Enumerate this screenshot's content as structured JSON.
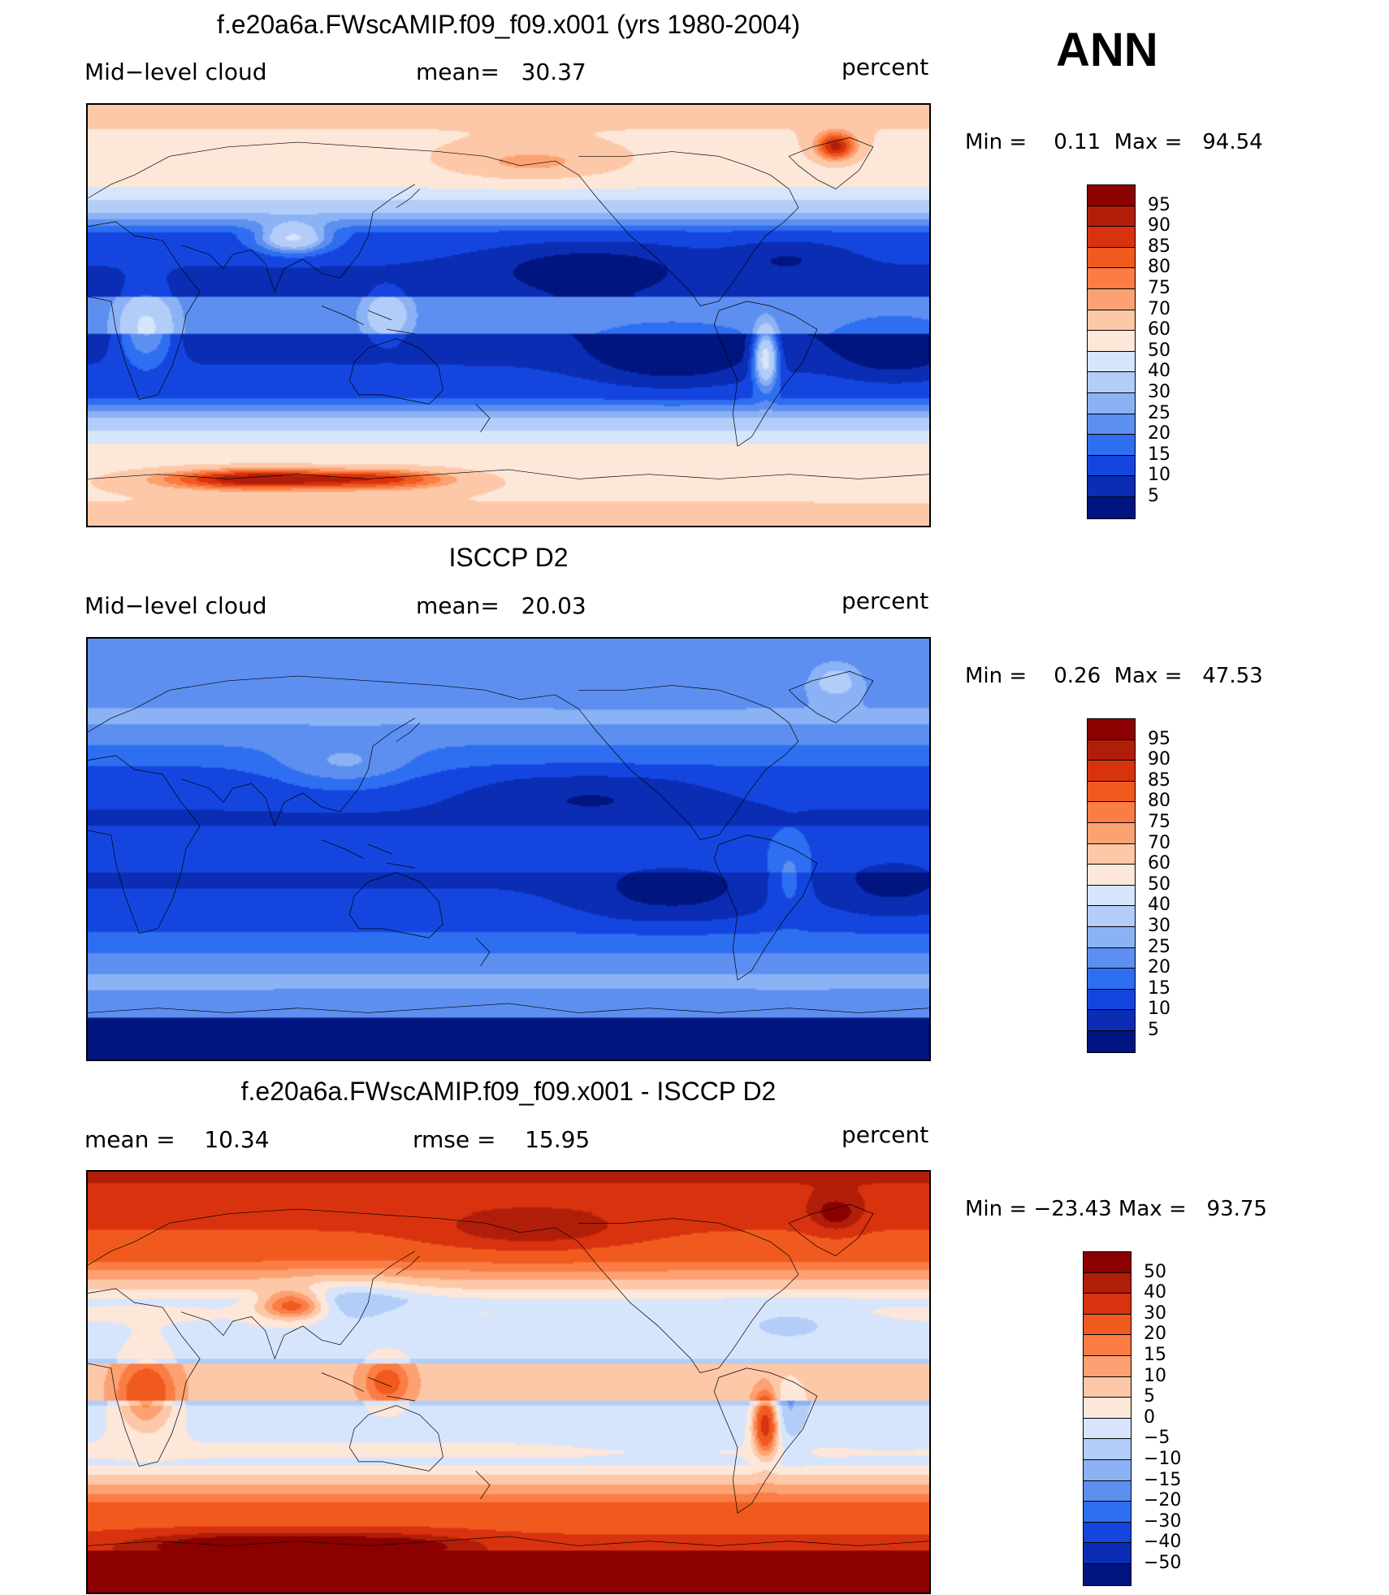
{
  "season": "ANN",
  "panels": [
    {
      "title": "f.e20a6a.FWscAMIP.f09_f09.x001 (yrs 1980-2004)",
      "left_label": "Mid−level cloud",
      "center_label": "mean=   30.37",
      "right_label": "percent",
      "minmax": "Min =    0.11  Max =   94.54",
      "colorbar_labels": [
        "95",
        "90",
        "85",
        "80",
        "75",
        "70",
        "60",
        "50",
        "40",
        "30",
        "25",
        "20",
        "15",
        "10",
        "5"
      ],
      "colorbar_colors": [
        "#8b0000",
        "#b01e0a",
        "#d8320f",
        "#f05a1e",
        "#fb7d45",
        "#fca272",
        "#fcc8a8",
        "#fde7d9",
        "#d6e5fb",
        "#b3cdf9",
        "#8bb2f5",
        "#5d8ff0",
        "#2e6ef0",
        "#1446df",
        "#0a2db4",
        "#001580"
      ],
      "field": "model"
    },
    {
      "title": "ISCCP D2",
      "left_label": "Mid−level cloud",
      "center_label": "mean=   20.03",
      "right_label": "percent",
      "minmax": "Min =    0.26  Max =   47.53",
      "colorbar_labels": [
        "95",
        "90",
        "85",
        "80",
        "75",
        "70",
        "60",
        "50",
        "40",
        "30",
        "25",
        "20",
        "15",
        "10",
        "5"
      ],
      "colorbar_colors": [
        "#8b0000",
        "#b01e0a",
        "#d8320f",
        "#f05a1e",
        "#fb7d45",
        "#fca272",
        "#fcc8a8",
        "#fde7d9",
        "#d6e5fb",
        "#b3cdf9",
        "#8bb2f5",
        "#5d8ff0",
        "#2e6ef0",
        "#1446df",
        "#0a2db4",
        "#001580"
      ],
      "field": "obs"
    },
    {
      "title": "f.e20a6a.FWscAMIP.f09_f09.x001 - ISCCP D2",
      "left_label": "mean =    10.34",
      "center_label": "rmse =    15.95",
      "right_label": "percent",
      "minmax": "Min = −23.43 Max =   93.75",
      "colorbar_labels": [
        "50",
        "40",
        "30",
        "20",
        "15",
        "10",
        "5",
        "0",
        "−5",
        "−10",
        "−15",
        "−20",
        "−30",
        "−40",
        "−50"
      ],
      "colorbar_colors": [
        "#8b0000",
        "#b01e0a",
        "#d8320f",
        "#f05a1e",
        "#fb7d45",
        "#fca272",
        "#fcc8a8",
        "#fde7d9",
        "#d6e5fb",
        "#b3cdf9",
        "#8bb2f5",
        "#5d8ff0",
        "#2e6ef0",
        "#1446df",
        "#0a2db4",
        "#001580"
      ],
      "field": "diff"
    }
  ]
}
